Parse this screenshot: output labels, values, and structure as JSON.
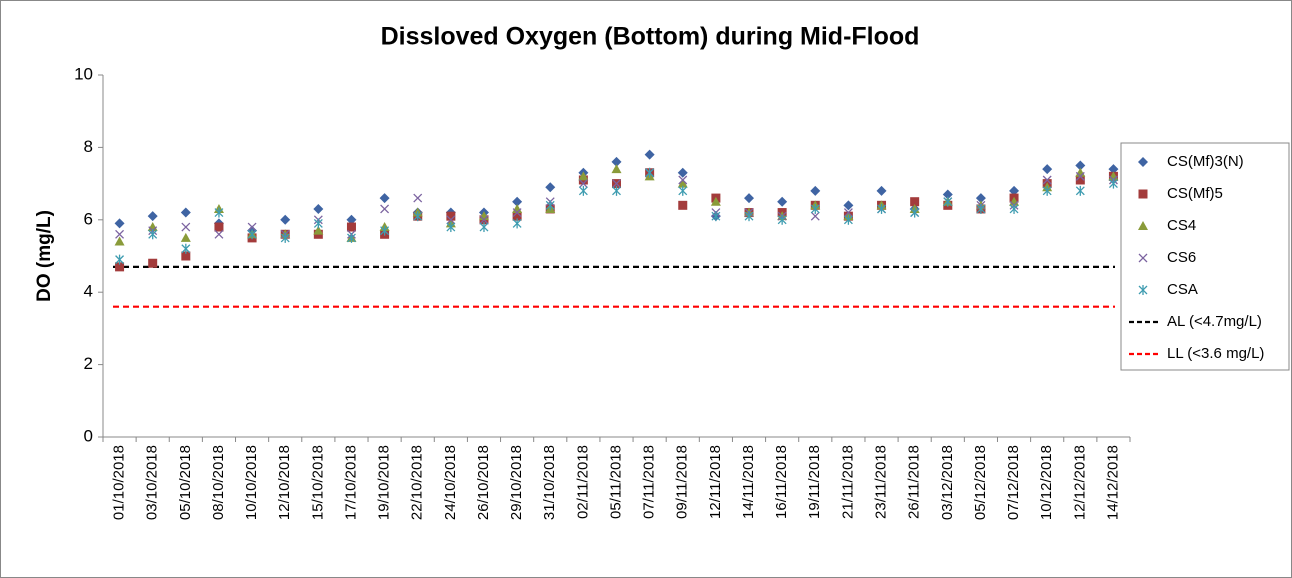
{
  "chart_data": {
    "type": "scatter",
    "title": "Dissloved Oxygen (Bottom) during Mid-Flood",
    "y_label": "DO (mg/L)",
    "categories": [
      "01/10/2018",
      "03/10/2018",
      "05/10/2018",
      "08/10/2018",
      "10/10/2018",
      "12/10/2018",
      "15/10/2018",
      "17/10/2018",
      "19/10/2018",
      "22/10/2018",
      "24/10/2018",
      "26/10/2018",
      "29/10/2018",
      "31/10/2018",
      "02/11/2018",
      "05/11/2018",
      "07/11/2018",
      "09/11/2018",
      "12/11/2018",
      "14/11/2018",
      "16/11/2018",
      "19/11/2018",
      "21/11/2018",
      "23/11/2018",
      "26/11/2018",
      "03/12/2018",
      "05/12/2018",
      "07/12/2018",
      "10/12/2018",
      "12/12/2018",
      "14/12/2018"
    ],
    "series": [
      {
        "name": "CS(Mf)3(N)",
        "color": "#3f64a3",
        "marker": "diamond",
        "values": [
          5.9,
          6.1,
          6.2,
          5.9,
          5.7,
          6.0,
          6.3,
          6.0,
          6.6,
          6.2,
          6.2,
          6.2,
          6.5,
          6.9,
          7.3,
          7.6,
          7.8,
          7.3,
          6.1,
          6.6,
          6.5,
          6.8,
          6.4,
          6.8,
          6.3,
          6.7,
          6.6,
          6.8,
          7.4,
          7.5,
          7.4
        ]
      },
      {
        "name": "CS(Mf)5",
        "color": "#a33b3b",
        "marker": "square",
        "values": [
          4.7,
          4.8,
          5.0,
          5.8,
          5.5,
          5.6,
          5.6,
          5.8,
          5.6,
          6.1,
          6.1,
          6.0,
          6.1,
          6.3,
          7.1,
          7.0,
          7.3,
          6.4,
          6.6,
          6.2,
          6.2,
          6.4,
          6.1,
          6.4,
          6.5,
          6.4,
          6.3,
          6.6,
          7.0,
          7.1,
          7.2
        ]
      },
      {
        "name": "CS4",
        "color": "#8a9b3a",
        "marker": "triangle",
        "values": [
          5.4,
          5.8,
          5.5,
          6.3,
          5.6,
          5.6,
          5.7,
          5.5,
          5.8,
          6.2,
          5.9,
          6.1,
          6.3,
          6.3,
          7.2,
          7.4,
          7.2,
          7.0,
          6.5,
          6.2,
          6.1,
          6.4,
          6.1,
          6.4,
          6.3,
          6.5,
          6.4,
          6.5,
          6.9,
          7.3,
          7.2
        ]
      },
      {
        "name": "CS6",
        "color": "#7b63a0",
        "marker": "x",
        "values": [
          5.6,
          5.7,
          5.8,
          5.6,
          5.8,
          5.6,
          6.0,
          5.6,
          6.3,
          6.6,
          6.0,
          6.0,
          6.2,
          6.5,
          7.0,
          7.0,
          7.3,
          7.1,
          6.2,
          6.2,
          6.1,
          6.1,
          6.2,
          6.3,
          6.2,
          6.5,
          6.4,
          6.4,
          7.1,
          7.2,
          7.1
        ]
      },
      {
        "name": "CSA",
        "color": "#3e9cb0",
        "marker": "star",
        "values": [
          4.9,
          5.6,
          5.2,
          6.2,
          5.6,
          5.5,
          5.9,
          5.5,
          5.7,
          6.1,
          5.8,
          5.8,
          5.9,
          6.4,
          6.8,
          6.8,
          7.3,
          6.8,
          6.1,
          6.1,
          6.0,
          6.3,
          6.0,
          6.3,
          6.2,
          6.5,
          6.3,
          6.3,
          6.8,
          6.8,
          7.0
        ]
      }
    ],
    "reference_lines": [
      {
        "name": "AL (<4.7mg/L)",
        "value": 4.7,
        "color": "#000000"
      },
      {
        "name": "LL (<3.6 mg/L)",
        "value": 3.6,
        "color": "#ff0000"
      }
    ],
    "ylim": [
      0,
      10
    ],
    "yticks": [
      0,
      2,
      4,
      6,
      8,
      10
    ],
    "legend": "right"
  }
}
